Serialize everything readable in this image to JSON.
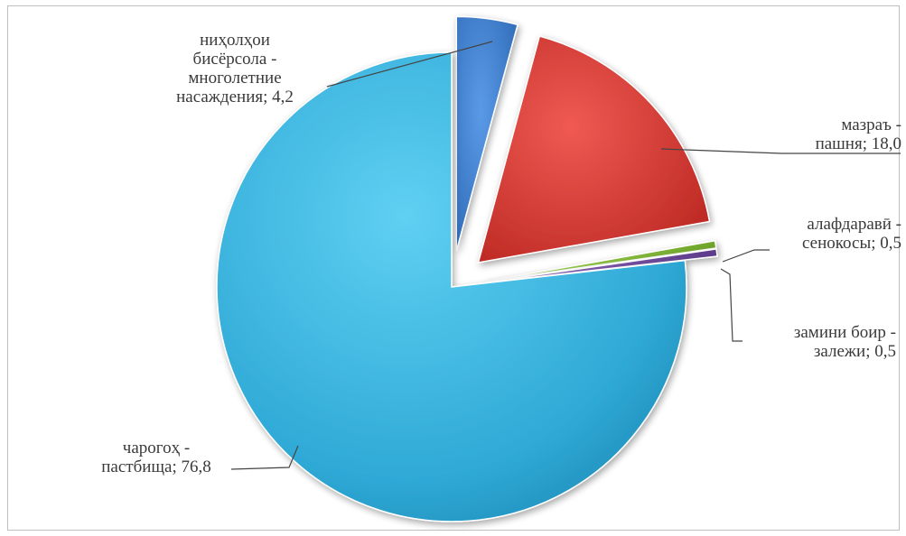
{
  "chart_data": {
    "type": "pie",
    "style": "3d-exploded",
    "slices": [
      {
        "key": "perennial",
        "lines": [
          "ниҳолҳои",
          "бисёрсола -",
          "многолетние",
          "насаждения; 4,2"
        ],
        "value": 4.2,
        "color": "#3a7fd0"
      },
      {
        "key": "arable",
        "lines": [
          "мазраъ -",
          "пашня; 18,0"
        ],
        "value": 18.0,
        "color": "#d63a36"
      },
      {
        "key": "hayfields",
        "lines": [
          "алафдаравӣ -",
          "сенокосы; 0,5"
        ],
        "value": 0.5,
        "color": "#8cc63e"
      },
      {
        "key": "fallow",
        "lines": [
          "замини боир -",
          "залежи; 0,5"
        ],
        "value": 0.5,
        "color": "#7b4fa8"
      },
      {
        "key": "pastures",
        "lines": [
          "чарогоҳ -",
          "пастбища; 76,8"
        ],
        "value": 76.8,
        "color": "#36b2dc"
      }
    ],
    "legend": "none"
  }
}
